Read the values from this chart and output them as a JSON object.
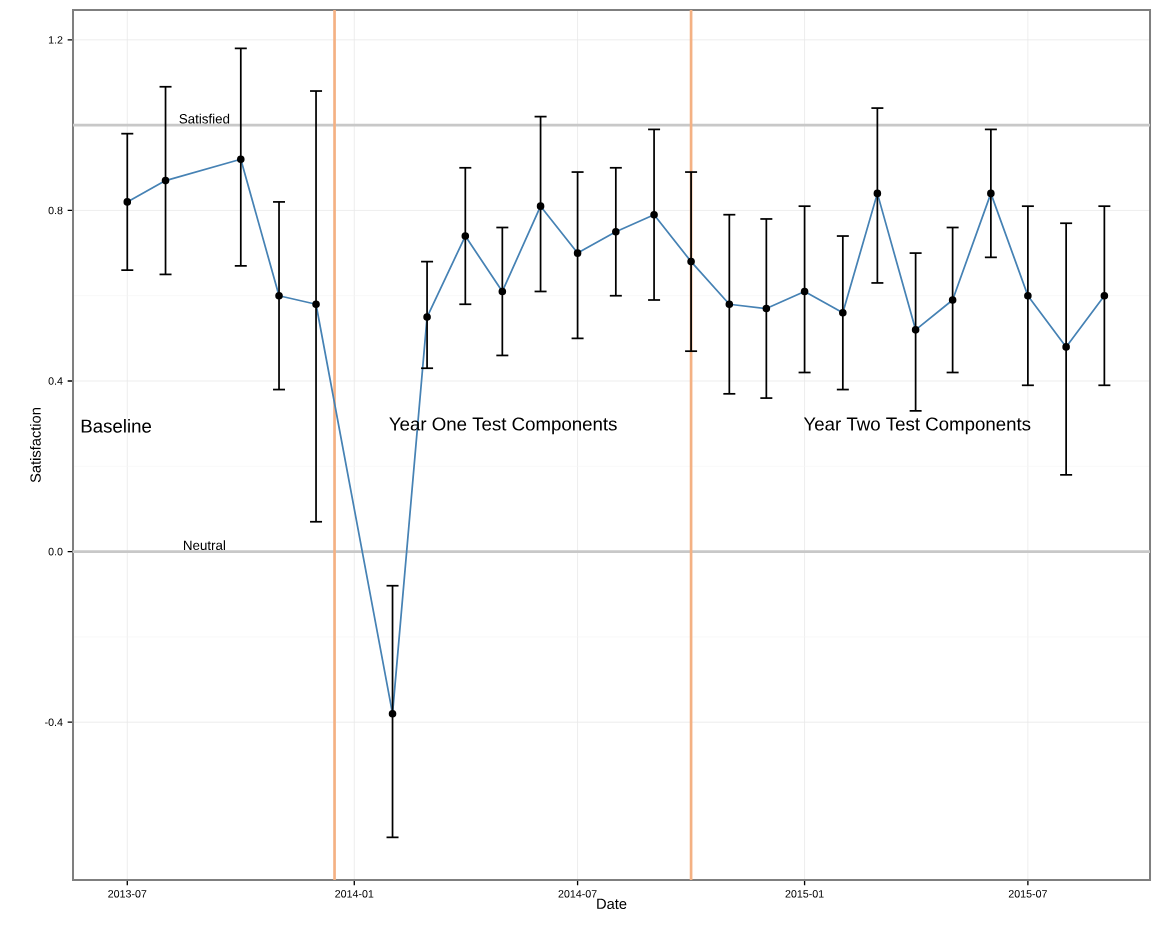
{
  "chart_data": {
    "type": "line",
    "xlabel": "Date",
    "ylabel": "Satisfaction",
    "x": [
      "2013-07-01",
      "2013-08-01",
      "2013-10-01",
      "2013-11-01",
      "2013-12-01",
      "2014-02-01",
      "2014-03-01",
      "2014-04-01",
      "2014-05-01",
      "2014-06-01",
      "2014-07-01",
      "2014-08-01",
      "2014-09-01",
      "2014-10-01",
      "2014-11-01",
      "2014-12-01",
      "2015-01-01",
      "2015-02-01",
      "2015-03-01",
      "2015-04-01",
      "2015-05-01",
      "2015-06-01",
      "2015-07-01",
      "2015-08-01",
      "2015-09-01"
    ],
    "series": [
      {
        "color": "#4682b4",
        "values": [
          0.82,
          0.87,
          0.92,
          0.6,
          0.58,
          -0.38,
          0.55,
          0.74,
          0.61,
          0.81,
          0.7,
          0.75,
          0.79,
          0.68,
          0.58,
          0.57,
          0.61,
          0.56,
          0.84,
          0.52,
          0.59,
          0.84,
          0.6,
          0.48,
          0.6
        ],
        "errors": [
          [
            0.66,
            0.98
          ],
          [
            0.65,
            1.09
          ],
          [
            0.67,
            1.18
          ],
          [
            0.38,
            0.82
          ],
          [
            0.07,
            1.08
          ],
          [
            -0.67,
            -0.08
          ],
          [
            0.43,
            0.68
          ],
          [
            0.58,
            0.9
          ],
          [
            0.46,
            0.76
          ],
          [
            0.61,
            1.02
          ],
          [
            0.5,
            0.89
          ],
          [
            0.6,
            0.9
          ],
          [
            0.59,
            0.99
          ],
          [
            0.47,
            0.89
          ],
          [
            0.37,
            0.79
          ],
          [
            0.36,
            0.78
          ],
          [
            0.42,
            0.81
          ],
          [
            0.38,
            0.74
          ],
          [
            0.63,
            1.04
          ],
          [
            0.33,
            0.7
          ],
          [
            0.42,
            0.76
          ],
          [
            0.69,
            0.99
          ],
          [
            0.39,
            0.81
          ],
          [
            0.18,
            0.77
          ],
          [
            0.39,
            0.81
          ]
        ]
      }
    ],
    "xlim": [
      "2013-05-18",
      "2015-10-08"
    ],
    "ylim": [
      -0.77,
      1.27
    ],
    "xticks": [
      "2013-07",
      "2014-01",
      "2014-07",
      "2015-01",
      "2015-07"
    ],
    "yticks": [
      -0.4,
      {
        "value": 0,
        "label": "0.0"
      },
      0.4,
      0.8,
      1.2
    ],
    "ref_lines": [
      {
        "axis": "y",
        "value": 1,
        "label": "Satisfied",
        "color": "#c8c8c8"
      },
      {
        "axis": "y",
        "value": 0,
        "label": "Neutral",
        "color": "#c8c8c8"
      },
      {
        "axis": "x",
        "value": "2013-12-16",
        "color": "#f4b183"
      },
      {
        "axis": "x",
        "value": "2014-10-01",
        "color": "#f4b183"
      }
    ],
    "annotations": [
      "Baseline",
      "Year One Test Components",
      "Year Two Test Components"
    ],
    "grid": true,
    "marker": "circle",
    "line_style": "solid"
  }
}
